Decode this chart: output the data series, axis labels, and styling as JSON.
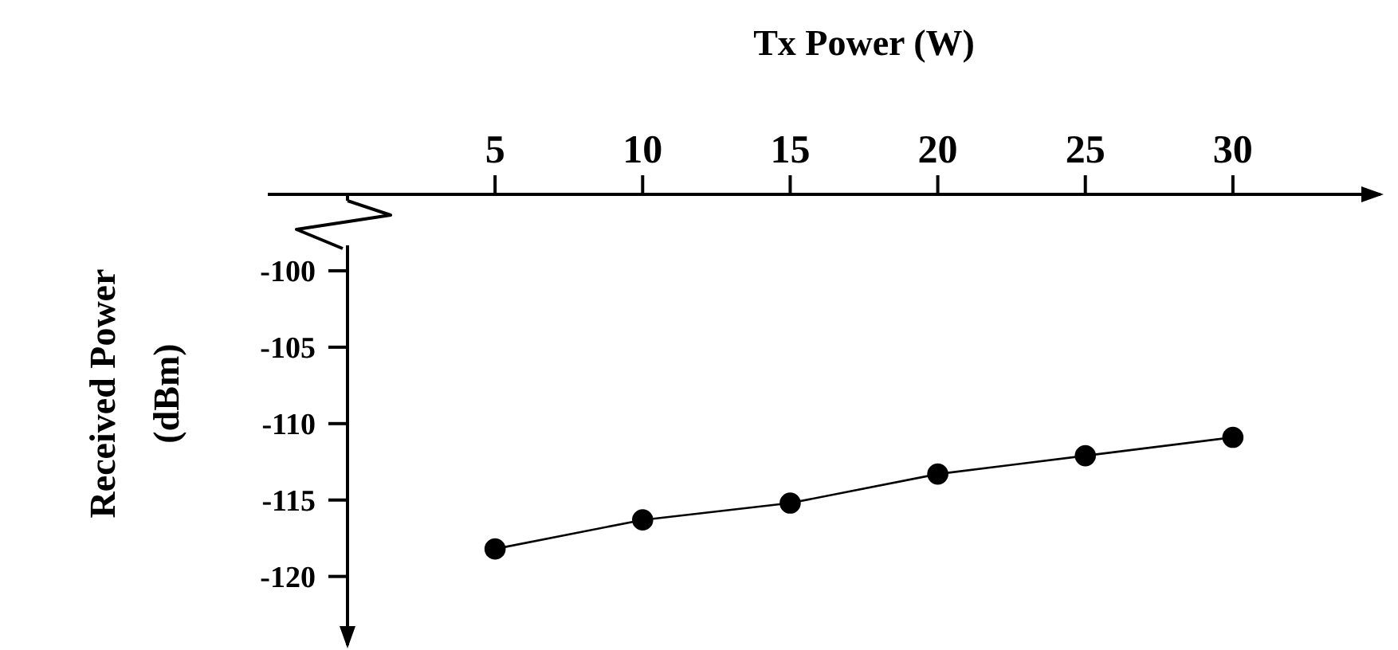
{
  "chart_data": {
    "type": "line",
    "xlabel": "Tx Power (W)",
    "ylabel": "Received Power (dBm)",
    "x": [
      5,
      10,
      15,
      20,
      25,
      30
    ],
    "series": [
      {
        "color": "#000000",
        "values": [
          -118.2,
          -116.3,
          -115.2,
          -113.3,
          -112.1,
          -110.9
        ]
      }
    ],
    "xlim": [
      0,
      35
    ],
    "xticks": [
      5,
      10,
      15,
      20,
      25,
      30
    ],
    "ylim": [
      -124.5,
      -95
    ],
    "yticks": [
      -100,
      -105,
      -110,
      -115,
      -120
    ],
    "marker": "circle",
    "line_style": "solid",
    "grid": false,
    "legend": false
  }
}
